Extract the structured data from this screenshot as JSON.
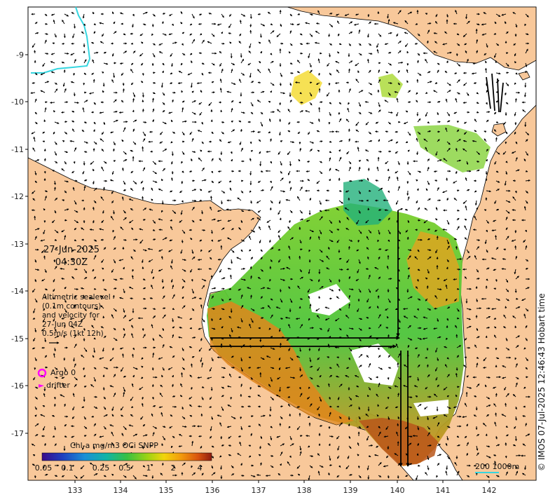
{
  "map": {
    "date": "27-Jun-2025",
    "time": "04:30Z",
    "altimetry_note": [
      "Altimetric sealevel",
      "(0.1m contours)",
      "and velocity for",
      "27-Jun 04Z",
      "0.5m/s (1kt 12h)"
    ],
    "x_ticks": [
      "133",
      "134",
      "135",
      "136",
      "137",
      "138",
      "139",
      "140",
      "141",
      "142"
    ],
    "y_ticks": [
      "9",
      "10",
      "11",
      "12",
      "13",
      "14",
      "15",
      "16",
      "17"
    ],
    "legend": {
      "argo_label": "Argo 0",
      "drifter_label": "drifter",
      "argo_color": "#ff00ff",
      "drifter_color": "#ff00ff"
    },
    "colorbar": {
      "title": "Chl-a mg/m3 OCi SNPP",
      "ticks": [
        "0.05",
        "0.1",
        "0.25",
        "0.5",
        "1",
        "2",
        "4"
      ],
      "colors": [
        "#3a0a8a",
        "#1f3fbf",
        "#1c8fd6",
        "#12b4a6",
        "#38c043",
        "#9bd312",
        "#f2d40b",
        "#f29a0c",
        "#d9530e",
        "#8e1c10"
      ]
    },
    "scale_bar": "200  1000m",
    "credit": "© IMOS 07-Jul-2025 12:46:43 Hobart time",
    "colors": {
      "land": "#f8c89a",
      "sea": "#ffffff",
      "isobath": "#35d6e0"
    }
  }
}
